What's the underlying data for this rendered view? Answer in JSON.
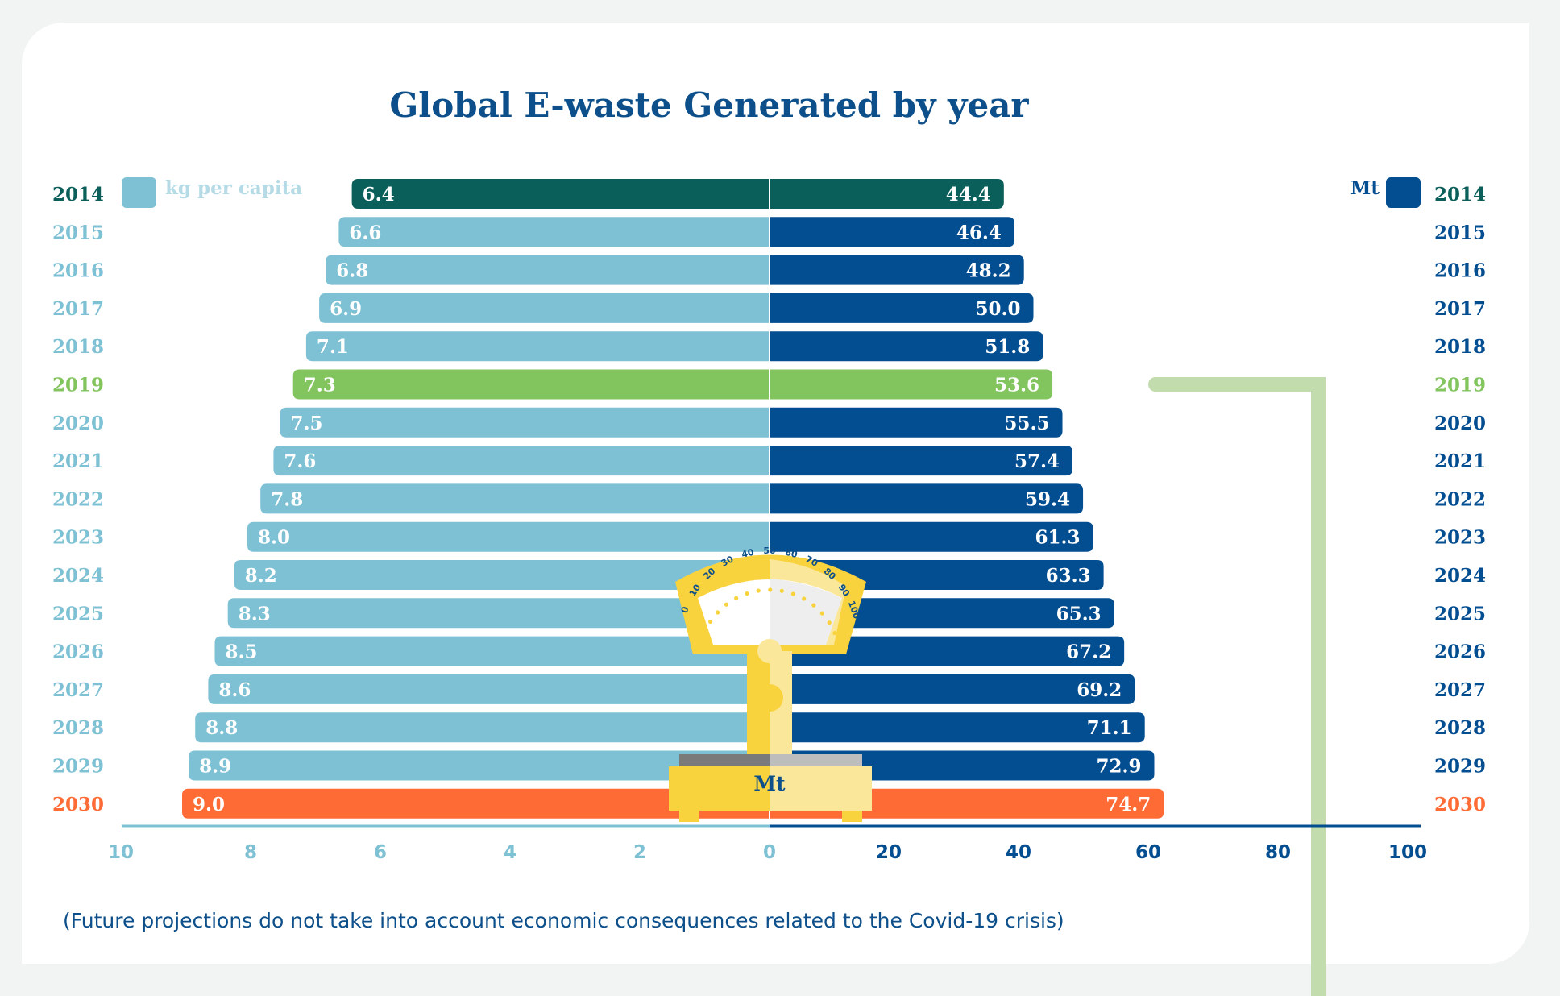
{
  "colors": {
    "left_bar": "#7ec1d4",
    "right_bar": "#034d91",
    "highlight_2014_bar": "#0b5f5b",
    "highlight_2019_bar": "#82c45e",
    "highlight_2030_bar": "#ff6b35",
    "year_left_default": "#7ec1d4",
    "year_right_default": "#034d91",
    "title": "#0c4f8a",
    "connector_line": "#c2dcad",
    "scale_yellow": "#f8d33e",
    "scale_pale": "#fae79a"
  },
  "chart_data": {
    "type": "bar",
    "layout": "back-to-back horizontal bars",
    "title": "Global E-waste Generated by year",
    "categories": [
      "2014",
      "2015",
      "2016",
      "2017",
      "2018",
      "2019",
      "2020",
      "2021",
      "2022",
      "2023",
      "2024",
      "2025",
      "2026",
      "2027",
      "2028",
      "2029",
      "2030"
    ],
    "series": [
      {
        "name": "kg per capita",
        "side": "left",
        "values": [
          6.4,
          6.6,
          6.8,
          6.9,
          7.1,
          7.3,
          7.5,
          7.6,
          7.8,
          8.0,
          8.2,
          8.3,
          8.5,
          8.6,
          8.8,
          8.9,
          9.0
        ]
      },
      {
        "name": "Mt",
        "side": "right",
        "values": [
          44.4,
          46.4,
          48.2,
          50.0,
          51.8,
          53.6,
          55.5,
          57.4,
          59.4,
          61.3,
          63.3,
          65.3,
          67.2,
          69.2,
          71.1,
          72.9,
          74.7
        ]
      }
    ],
    "value_labels_left": [
      "6.4",
      "6.6",
      "6.8",
      "6.9",
      "7.1",
      "7.3",
      "7.5",
      "7.6",
      "7.8",
      "8.0",
      "8.2",
      "8.3",
      "8.5",
      "8.6",
      "8.8",
      "8.9",
      "9.0"
    ],
    "value_labels_right": [
      "44.4",
      "46.4",
      "48.2",
      "50.0",
      "51.8",
      "53.6",
      "55.5",
      "57.4",
      "59.4",
      "61.3",
      "63.3",
      "65.3",
      "67.2",
      "69.2",
      "71.1",
      "72.9",
      "74.7"
    ],
    "highlighted_years": {
      "2014": "highlight_2014",
      "2019": "highlight_2019",
      "2030": "highlight_2030"
    },
    "left_axis": {
      "range": [
        0,
        10
      ],
      "ticks": [
        "10",
        "8",
        "6",
        "4",
        "2",
        "0"
      ],
      "tick_values": [
        10,
        8,
        6,
        4,
        2,
        0
      ]
    },
    "right_axis": {
      "range": [
        0,
        100
      ],
      "ticks": [
        "20",
        "40",
        "60",
        "80",
        "100"
      ],
      "tick_values": [
        20,
        40,
        60,
        80,
        100
      ]
    },
    "legend": {
      "left": "kg per capita",
      "right": "Mt"
    },
    "scale_label": "Mt",
    "scale_dial_ticks": [
      "0",
      "10",
      "20",
      "30",
      "40",
      "50",
      "60",
      "70",
      "80",
      "90",
      "100"
    ],
    "note": "(Future projections do not take into account economic consequences related to the Covid-19 crisis)",
    "grid": false
  }
}
